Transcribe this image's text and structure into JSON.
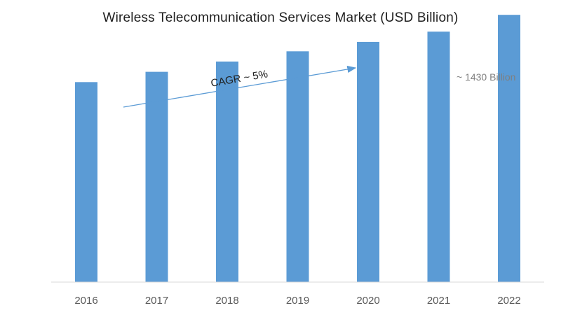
{
  "chart_data": {
    "type": "bar",
    "title": "Wireless Telecommunication Services Market (USD Billion)",
    "xlabel": "",
    "ylabel": "",
    "categories": [
      "2016",
      "2017",
      "2018",
      "2019",
      "2020",
      "2021",
      "2022"
    ],
    "values": [
      1070,
      1125,
      1180,
      1235,
      1285,
      1340,
      1430
    ],
    "ylim": [
      0,
      1600
    ],
    "grid": false,
    "legend": "none",
    "bar_color": "#5b9bd5",
    "annotations": {
      "cagr": "CAGR ~ 5%",
      "last_value": "~ 1430 Billion"
    }
  }
}
